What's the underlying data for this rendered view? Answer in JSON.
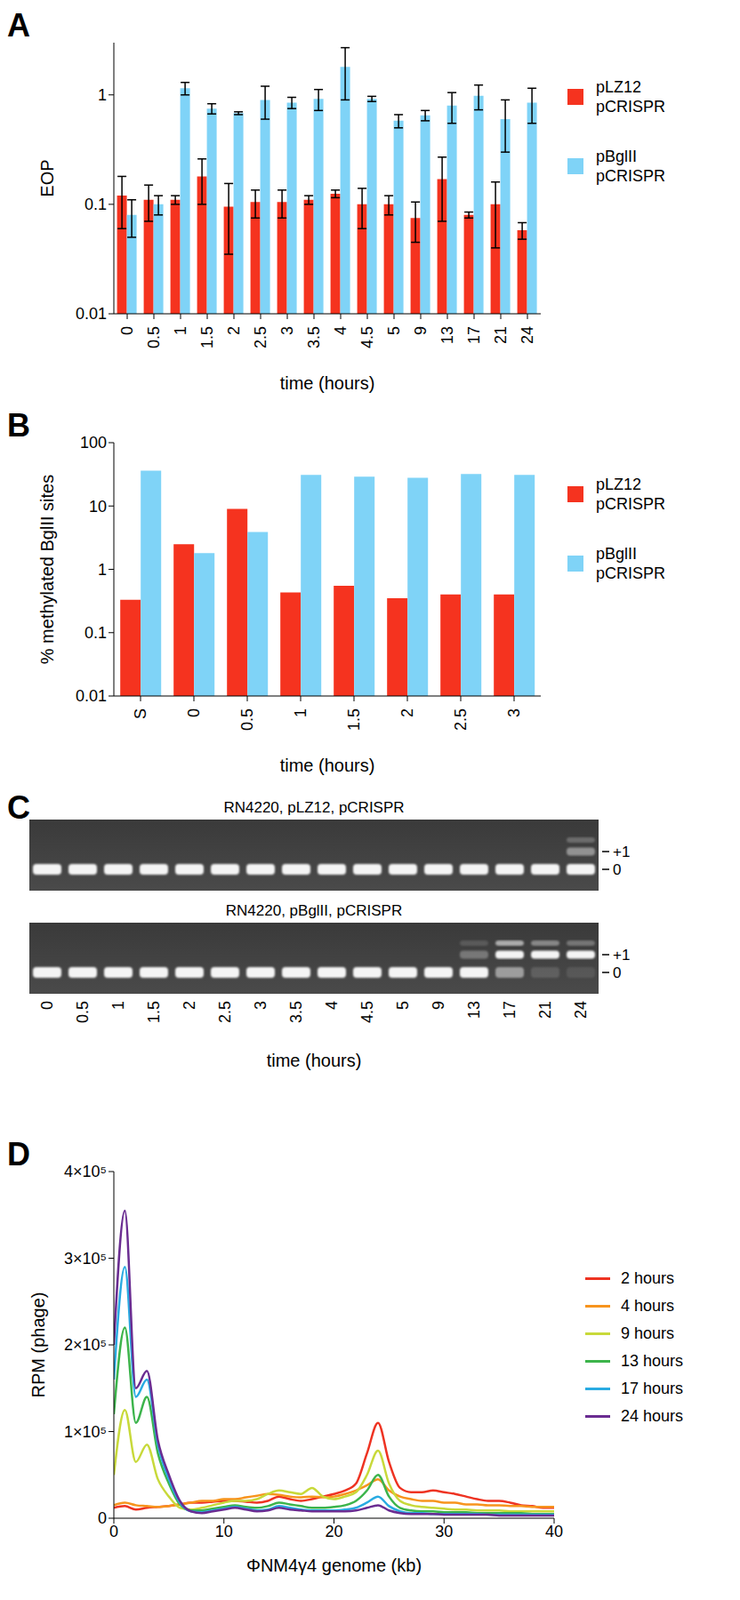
{
  "chart_data": [
    {
      "panel": "A",
      "type": "bar",
      "x_label": "time (hours)",
      "y_label": "EOP",
      "categories": [
        "0",
        "0.5",
        "1",
        "1.5",
        "2",
        "2.5",
        "3",
        "3.5",
        "4",
        "4.5",
        "5",
        "9",
        "13",
        "17",
        "21",
        "24"
      ],
      "series": [
        {
          "name": "pLZ12\npCRISPR",
          "color": "#f5331f",
          "values": [
            0.12,
            0.11,
            0.11,
            0.18,
            0.095,
            0.105,
            0.105,
            0.11,
            0.125,
            0.1,
            0.1,
            0.075,
            0.17,
            0.08,
            0.1,
            0.058
          ],
          "errors": [
            0.06,
            0.04,
            0.01,
            0.08,
            0.06,
            0.03,
            0.03,
            0.01,
            0.01,
            0.04,
            0.02,
            0.03,
            0.1,
            0.005,
            0.06,
            0.01
          ]
        },
        {
          "name": "pBglII\npCRISPR",
          "color": "#7fd3f7",
          "values": [
            0.08,
            0.1,
            1.15,
            0.75,
            0.68,
            0.9,
            0.85,
            0.92,
            1.8,
            0.92,
            0.58,
            0.65,
            0.8,
            0.98,
            0.6,
            0.85
          ],
          "errors": [
            0.03,
            0.02,
            0.15,
            0.08,
            0.02,
            0.3,
            0.1,
            0.2,
            0.9,
            0.05,
            0.08,
            0.07,
            0.25,
            0.25,
            0.3,
            0.3
          ]
        }
      ],
      "ylim": [
        0.01,
        3
      ],
      "yticks": [
        0.01,
        0.1,
        1
      ],
      "log": "y",
      "grid": false,
      "legend": "right"
    },
    {
      "panel": "B",
      "type": "bar",
      "x_label": "time (hours)",
      "y_label": "% methylated BglII sites",
      "categories": [
        "S",
        "0",
        "0.5",
        "1",
        "1.5",
        "2",
        "2.5",
        "3"
      ],
      "series": [
        {
          "name": "pLZ12\npCRISPR",
          "color": "#f5331f",
          "values": [
            0.33,
            2.5,
            9,
            0.43,
            0.55,
            0.35,
            0.4,
            0.4
          ]
        },
        {
          "name": "pBglII\npCRISPR",
          "color": "#7fd3f7",
          "values": [
            36,
            1.8,
            3.9,
            31,
            29,
            28,
            32,
            31
          ]
        }
      ],
      "ylim": [
        0.01,
        100
      ],
      "yticks": [
        0.01,
        0.1,
        1,
        10,
        100
      ],
      "log": "y",
      "grid": false,
      "legend": "right"
    },
    {
      "panel": "C",
      "type": "gel",
      "x_label": "time (hours)",
      "categories": [
        "0",
        "0.5",
        "1",
        "1.5",
        "2",
        "2.5",
        "3",
        "3.5",
        "4",
        "4.5",
        "5",
        "9",
        "13",
        "17",
        "21",
        "24"
      ],
      "levels": [
        "0",
        "+1",
        null
      ],
      "gels": [
        {
          "title": "RN4220, pLZ12, pCRISPR",
          "intensities": [
            [
              1,
              0,
              0
            ],
            [
              1,
              0,
              0
            ],
            [
              1,
              0,
              0
            ],
            [
              1,
              0,
              0
            ],
            [
              1,
              0,
              0
            ],
            [
              1,
              0,
              0
            ],
            [
              1,
              0,
              0
            ],
            [
              1,
              0,
              0
            ],
            [
              1,
              0,
              0
            ],
            [
              1,
              0,
              0
            ],
            [
              1,
              0,
              0
            ],
            [
              1,
              0,
              0
            ],
            [
              1,
              0,
              0
            ],
            [
              1,
              0,
              0
            ],
            [
              1,
              0,
              0
            ],
            [
              1,
              0.45,
              0.25
            ]
          ]
        },
        {
          "title": "RN4220, pBglII, pCRISPR",
          "intensities": [
            [
              1,
              0,
              0
            ],
            [
              1,
              0,
              0
            ],
            [
              1,
              0,
              0
            ],
            [
              1,
              0,
              0
            ],
            [
              1,
              0,
              0
            ],
            [
              1,
              0,
              0
            ],
            [
              1,
              0,
              0
            ],
            [
              1,
              0,
              0
            ],
            [
              1,
              0,
              0
            ],
            [
              1,
              0,
              0
            ],
            [
              1,
              0,
              0
            ],
            [
              1,
              0,
              0
            ],
            [
              1,
              0.3,
              0.15
            ],
            [
              0.5,
              1,
              0.6
            ],
            [
              0.15,
              1,
              0.4
            ],
            [
              0.1,
              1,
              0.3
            ]
          ]
        }
      ]
    },
    {
      "panel": "D",
      "type": "line",
      "x_label": "ΦNM4γ4 genome (kb)",
      "y_label": "RPM (phage)",
      "x": [
        0,
        1,
        2,
        3,
        4,
        5,
        6,
        7,
        8,
        9,
        10,
        11,
        12,
        13,
        14,
        15,
        16,
        17,
        18,
        19,
        20,
        21,
        22,
        23,
        24,
        25,
        26,
        27,
        28,
        29,
        30,
        31,
        32,
        33,
        34,
        35,
        36,
        37,
        38,
        39,
        40
      ],
      "series": [
        {
          "name": "2 hours",
          "color": "#ee3322",
          "values": [
            12000,
            14000,
            10000,
            12000,
            13000,
            14000,
            16000,
            18000,
            18000,
            19000,
            20000,
            20000,
            19000,
            18000,
            20000,
            25000,
            22000,
            20000,
            22000,
            25000,
            28000,
            32000,
            40000,
            75000,
            110000,
            65000,
            35000,
            30000,
            30000,
            32000,
            30000,
            28000,
            25000,
            22000,
            20000,
            20000,
            18000,
            15000,
            14000,
            12000,
            12000
          ]
        },
        {
          "name": "4 hours",
          "color": "#f7941d",
          "values": [
            15000,
            18000,
            15000,
            14000,
            13000,
            14000,
            16000,
            18000,
            20000,
            20000,
            22000,
            22000,
            24000,
            26000,
            28000,
            27000,
            25000,
            24000,
            25000,
            24000,
            25000,
            28000,
            32000,
            38000,
            45000,
            32000,
            25000,
            22000,
            20000,
            20000,
            18000,
            18000,
            16000,
            16000,
            15000,
            15000,
            14000,
            14000,
            13000,
            13000,
            13000
          ]
        },
        {
          "name": "9 hours",
          "color": "#c8d93a",
          "values": [
            50000,
            125000,
            65000,
            85000,
            45000,
            25000,
            12000,
            10000,
            12000,
            15000,
            18000,
            20000,
            20000,
            22000,
            28000,
            32000,
            30000,
            28000,
            35000,
            25000,
            22000,
            25000,
            30000,
            50000,
            78000,
            40000,
            20000,
            15000,
            13000,
            12000,
            11000,
            10000,
            10000,
            9000,
            9000,
            9000,
            8000,
            8000,
            8000,
            8000,
            8000
          ]
        },
        {
          "name": "13 hours",
          "color": "#3cb44b",
          "values": [
            120000,
            220000,
            110000,
            140000,
            75000,
            40000,
            16000,
            9000,
            9000,
            11000,
            13000,
            15000,
            13000,
            12000,
            14000,
            18000,
            16000,
            14000,
            12000,
            12000,
            13000,
            15000,
            20000,
            32000,
            50000,
            25000,
            12000,
            9000,
            8000,
            8000,
            7000,
            7000,
            7000,
            6000,
            6000,
            6000,
            6000,
            6000,
            5000,
            5000,
            5000
          ]
        },
        {
          "name": "17 hours",
          "color": "#29abe2",
          "values": [
            160000,
            290000,
            140000,
            160000,
            85000,
            45000,
            18000,
            8000,
            7000,
            9000,
            11000,
            13000,
            11000,
            9000,
            10000,
            14000,
            12000,
            10000,
            9000,
            9000,
            9000,
            10000,
            12000,
            18000,
            25000,
            14000,
            8000,
            6000,
            6000,
            5000,
            5000,
            5000,
            5000,
            5000,
            4000,
            4000,
            4000,
            4000,
            4000,
            4000,
            4000
          ]
        },
        {
          "name": "24 hours",
          "color": "#6a2c91",
          "values": [
            200000,
            355000,
            150000,
            170000,
            90000,
            50000,
            20000,
            8000,
            6000,
            8000,
            10000,
            12000,
            10000,
            8000,
            9000,
            12000,
            10000,
            9000,
            8000,
            8000,
            8000,
            8000,
            9000,
            12000,
            15000,
            9000,
            6000,
            5000,
            5000,
            5000,
            4000,
            4000,
            4000,
            4000,
            4000,
            3000,
            3000,
            3000,
            3000,
            3000,
            3000
          ]
        }
      ],
      "xlim": [
        0,
        40
      ],
      "xticks": [
        0,
        10,
        20,
        30,
        40
      ],
      "ylim": [
        0,
        400000
      ],
      "yticks": [
        0,
        {
          "value": 100000,
          "label": "1×10⁵"
        },
        {
          "value": 200000,
          "label": "2×10⁵"
        },
        {
          "value": 300000,
          "label": "3×10⁵"
        },
        {
          "value": 400000,
          "label": "4×10⁵"
        }
      ],
      "grid": false,
      "legend": "right"
    }
  ]
}
